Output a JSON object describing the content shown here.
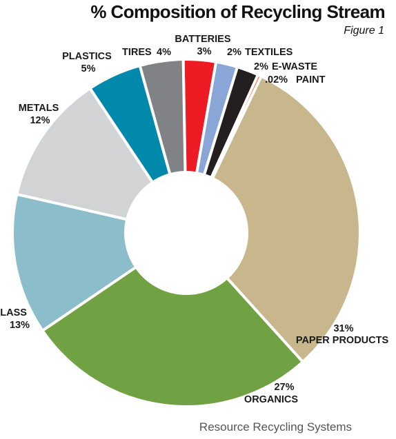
{
  "chart_data": {
    "type": "pie",
    "title": "% Composition of Recycling Stream",
    "subtitle": "Figure 1",
    "source": "Resource Recycling Systems",
    "slices": [
      {
        "label": "BATTERIES",
        "value_label": "3%",
        "value": 3,
        "color": "#ed1c24"
      },
      {
        "label": "TEXTILES",
        "value_label": "2%",
        "value": 2,
        "color": "#8aa6d6"
      },
      {
        "label": "E-WASTE",
        "value_label": "2%",
        "value": 2,
        "color": "#231f20"
      },
      {
        "label": "PAINT",
        "value_label": ".02%",
        "value": 0.02,
        "color": "#f26522"
      },
      {
        "label": "PAPER PRODUCTS",
        "value_label": "31%",
        "value": 31,
        "color": "#c8b78c"
      },
      {
        "label": "ORGANICS",
        "value_label": "27%",
        "value": 27,
        "color": "#70a143"
      },
      {
        "label": "GLASS",
        "value_label": "13%",
        "value": 13,
        "color": "#8bbdca"
      },
      {
        "label": "METALS",
        "value_label": "12%",
        "value": 12,
        "color": "#d1d3d4"
      },
      {
        "label": "PLASTICS",
        "value_label": "5%",
        "value": 5,
        "color": "#0089ab"
      },
      {
        "label": "TIRES",
        "value_label": "4%",
        "value": 4,
        "color": "#808285"
      }
    ]
  }
}
